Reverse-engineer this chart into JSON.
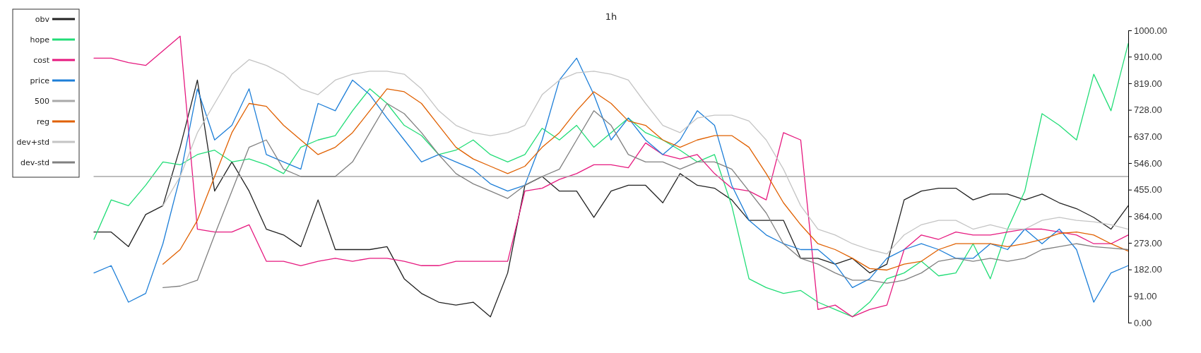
{
  "chart_data": {
    "type": "line",
    "title": "1h",
    "legend": "top left",
    "marker": "none",
    "line_style": "solid",
    "tick_labels": "y",
    "categories": [
      null,
      null,
      null,
      null,
      null,
      null,
      null,
      null,
      null,
      null,
      null,
      null,
      null,
      null,
      null,
      null,
      null,
      null,
      null,
      null,
      null,
      null,
      null,
      null,
      null,
      null,
      null,
      null,
      null,
      null,
      null,
      null,
      null,
      null,
      null,
      null,
      null,
      null,
      null,
      null,
      null,
      null,
      null,
      null,
      null,
      null,
      null,
      null,
      null,
      null,
      null,
      null,
      null,
      null,
      null,
      null,
      null,
      null,
      null,
      null,
      null
    ],
    "ylim": [
      0,
      1000
    ],
    "yticks": [
      {
        "value": 0,
        "label": "0.00"
      },
      {
        "value": 91,
        "label": "91.00"
      },
      {
        "value": 182,
        "label": "182.00"
      },
      {
        "value": 273,
        "label": "273.00"
      },
      {
        "value": 364,
        "label": "364.00"
      },
      {
        "value": 455,
        "label": "455.00"
      },
      {
        "value": 546,
        "label": "546.00"
      },
      {
        "value": 637,
        "label": "637.00"
      },
      {
        "value": 728,
        "label": "728.00"
      },
      {
        "value": 819,
        "label": "819.00"
      },
      {
        "value": 910,
        "label": "910.00"
      },
      {
        "value": 1000,
        "label": "1000.00"
      }
    ],
    "series": [
      {
        "name": "obv",
        "color": "#222222",
        "values": [
          310,
          310,
          260,
          370,
          400,
          600,
          830,
          450,
          550,
          450,
          320,
          300,
          260,
          420,
          250,
          250,
          250,
          260,
          150,
          100,
          70,
          60,
          70,
          20,
          170,
          470,
          500,
          450,
          450,
          360,
          450,
          470,
          470,
          410,
          510,
          470,
          460,
          420,
          350,
          350,
          350,
          220,
          220,
          200,
          220,
          170,
          200,
          420,
          450,
          460,
          460,
          420,
          440,
          440,
          420,
          440,
          410,
          390,
          360,
          320,
          400
        ]
      },
      {
        "name": "hope",
        "color": "#22dd77",
        "values": [
          285,
          420,
          400,
          470,
          550,
          540,
          575,
          590,
          550,
          560,
          540,
          510,
          600,
          625,
          640,
          725,
          800,
          750,
          675,
          640,
          575,
          590,
          625,
          575,
          550,
          575,
          665,
          625,
          675,
          600,
          650,
          700,
          650,
          625,
          590,
          550,
          575,
          400,
          150,
          120,
          100,
          110,
          70,
          45,
          20,
          70,
          150,
          170,
          210,
          160,
          170,
          270,
          150,
          320,
          450,
          715,
          675,
          625,
          850,
          725,
          955
        ]
      },
      {
        "name": "cost",
        "color": "#e6197f",
        "values": [
          905,
          905,
          890,
          880,
          930,
          980,
          320,
          310,
          310,
          335,
          210,
          210,
          195,
          210,
          220,
          210,
          220,
          220,
          210,
          195,
          195,
          210,
          210,
          210,
          210,
          450,
          460,
          490,
          510,
          540,
          540,
          530,
          615,
          575,
          560,
          575,
          510,
          460,
          450,
          420,
          650,
          625,
          45,
          60,
          20,
          45,
          60,
          250,
          300,
          285,
          310,
          300,
          300,
          310,
          320,
          320,
          310,
          300,
          270,
          270,
          300
        ]
      },
      {
        "name": "price",
        "color": "#1e7fd8",
        "values": [
          170,
          195,
          70,
          100,
          270,
          500,
          800,
          625,
          675,
          800,
          575,
          550,
          525,
          750,
          725,
          830,
          780,
          700,
          625,
          550,
          575,
          550,
          525,
          475,
          450,
          470,
          625,
          830,
          905,
          780,
          625,
          700,
          625,
          575,
          625,
          725,
          675,
          470,
          350,
          300,
          270,
          250,
          250,
          200,
          120,
          150,
          220,
          250,
          270,
          250,
          220,
          220,
          270,
          250,
          320,
          270,
          320,
          250,
          70,
          170,
          195
        ]
      },
      {
        "name": "500",
        "color": "#a8a8a8",
        "values": [
          500,
          500,
          500,
          500,
          500,
          500,
          500,
          500,
          500,
          500,
          500,
          500,
          500,
          500,
          500,
          500,
          500,
          500,
          500,
          500,
          500,
          500,
          500,
          500,
          500,
          500,
          500,
          500,
          500,
          500,
          500,
          500,
          500,
          500,
          500,
          500,
          500,
          500,
          500,
          500,
          500,
          500,
          500,
          500,
          500,
          500,
          500,
          500,
          500,
          500,
          500,
          500,
          500,
          500,
          500,
          500,
          500,
          500,
          500,
          500,
          500
        ]
      },
      {
        "name": "reg",
        "color": "#e06000",
        "values": [
          null,
          null,
          null,
          null,
          200,
          250,
          350,
          500,
          650,
          750,
          740,
          675,
          625,
          575,
          600,
          650,
          725,
          800,
          790,
          750,
          675,
          600,
          560,
          535,
          510,
          535,
          600,
          650,
          725,
          790,
          750,
          690,
          675,
          625,
          600,
          625,
          640,
          640,
          600,
          510,
          410,
          335,
          270,
          250,
          220,
          185,
          180,
          200,
          210,
          250,
          270,
          270,
          270,
          260,
          270,
          285,
          305,
          310,
          300,
          270,
          245
        ]
      },
      {
        "name": "dev+std",
        "color": "#c4c4c4",
        "values": [
          null,
          null,
          null,
          null,
          400,
          500,
          650,
          750,
          850,
          900,
          880,
          850,
          800,
          780,
          830,
          850,
          860,
          860,
          850,
          800,
          725,
          675,
          650,
          640,
          650,
          675,
          780,
          830,
          855,
          860,
          850,
          830,
          750,
          675,
          650,
          700,
          710,
          710,
          690,
          625,
          525,
          400,
          320,
          300,
          270,
          250,
          235,
          300,
          335,
          350,
          350,
          320,
          335,
          320,
          320,
          350,
          360,
          350,
          345,
          335,
          320
        ]
      },
      {
        "name": "dev-std",
        "color": "#808080",
        "values": [
          null,
          null,
          null,
          null,
          120,
          125,
          145,
          300,
          450,
          600,
          625,
          525,
          500,
          500,
          500,
          550,
          650,
          750,
          715,
          650,
          575,
          510,
          475,
          450,
          425,
          470,
          500,
          525,
          625,
          725,
          675,
          575,
          550,
          550,
          525,
          550,
          550,
          525,
          450,
          375,
          270,
          220,
          200,
          170,
          145,
          145,
          135,
          145,
          170,
          210,
          220,
          210,
          220,
          210,
          220,
          250,
          260,
          270,
          260,
          255,
          250
        ]
      }
    ]
  }
}
